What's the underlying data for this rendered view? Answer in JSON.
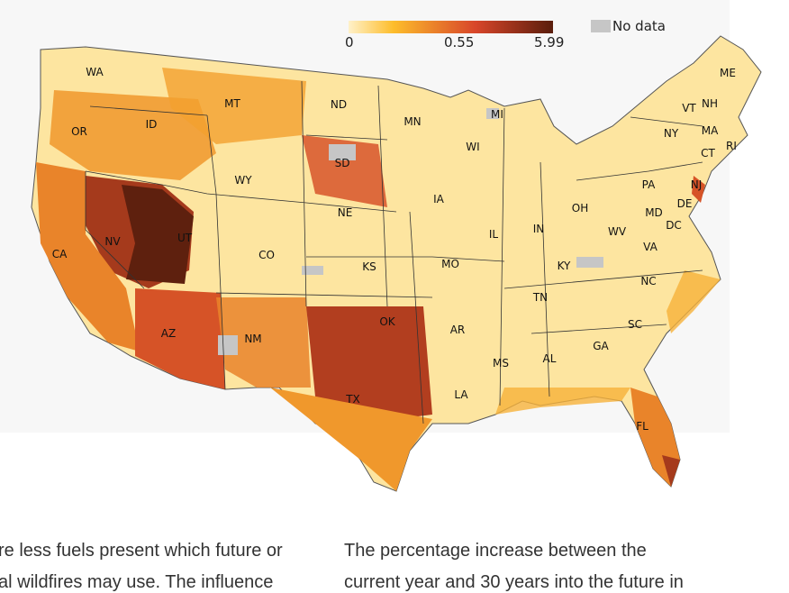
{
  "legend": {
    "min": "0",
    "mid": "0.55",
    "max": "5.99",
    "no_data": "No data",
    "colors": [
      "#fff1c9",
      "#fdbd2b",
      "#d8462a",
      "#5a1d0c"
    ],
    "no_data_color": "#c6c6c6"
  },
  "states": [
    "WA",
    "OR",
    "ID",
    "MT",
    "ND",
    "MN",
    "MI",
    "WI",
    "SD",
    "WY",
    "NE",
    "IA",
    "IL",
    "IN",
    "OH",
    "PA",
    "NY",
    "VT",
    "NH",
    "ME",
    "MA",
    "RI",
    "CT",
    "NJ",
    "DE",
    "MD",
    "DC",
    "WV",
    "VA",
    "NC",
    "KY",
    "TN",
    "SC",
    "GA",
    "AL",
    "MS",
    "LA",
    "AR",
    "MO",
    "KS",
    "OK",
    "TX",
    "NM",
    "CO",
    "UT",
    "NV",
    "CA",
    "AZ",
    "FL"
  ],
  "body": {
    "left": [
      "re less fuels present which future or",
      "al wildfires may use. The influence"
    ],
    "right": [
      "The percentage increase between the",
      "current year and 30 years into the future in"
    ]
  }
}
